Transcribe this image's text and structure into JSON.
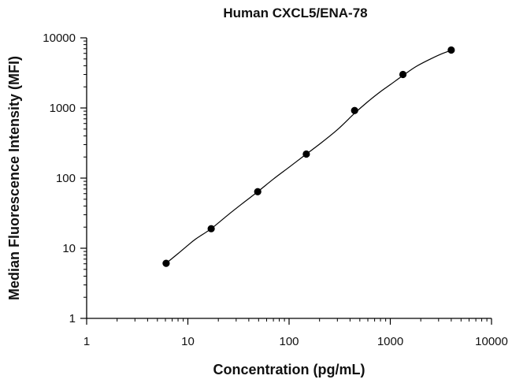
{
  "chart_data": {
    "type": "scatter",
    "title": "Human CXCL5/ENA-78",
    "xlabel": "Concentration (pg/mL)",
    "ylabel": "Median Fluorescence Intensity (MFI)",
    "x_scale": "log",
    "y_scale": "log",
    "xlim": [
      1,
      10000
    ],
    "ylim": [
      1,
      10000
    ],
    "x_ticks": [
      1,
      10,
      100,
      1000,
      10000
    ],
    "x_tick_labels": [
      "1",
      "10",
      "100",
      "1000",
      "10000"
    ],
    "y_ticks": [
      1,
      10,
      100,
      1000,
      10000
    ],
    "y_tick_labels": [
      "1",
      "10",
      "100",
      "1000",
      "10000"
    ],
    "grid": false,
    "legend": "none",
    "colors": {
      "points": "#000000",
      "curve": "#000000",
      "axes": "#000000"
    },
    "series": [
      {
        "points": [
          {
            "x": 6.1,
            "y": 6.1
          },
          {
            "x": 17,
            "y": 19
          },
          {
            "x": 49,
            "y": 64
          },
          {
            "x": 148,
            "y": 220
          },
          {
            "x": 444,
            "y": 920
          },
          {
            "x": 1333,
            "y": 3000
          },
          {
            "x": 4000,
            "y": 6700
          }
        ]
      }
    ],
    "fit_curve": {
      "x": [
        6.1,
        8,
        10,
        12,
        17,
        25,
        35,
        49,
        70,
        100,
        148,
        200,
        300,
        444,
        600,
        800,
        1000,
        1333,
        1800,
        2500,
        3200,
        4000
      ],
      "y": [
        6.1,
        8.4,
        11,
        13.6,
        19,
        30,
        44,
        64,
        97,
        143,
        220,
        305,
        490,
        840,
        1230,
        1710,
        2150,
        2900,
        3900,
        5000,
        5900,
        6650
      ]
    }
  }
}
